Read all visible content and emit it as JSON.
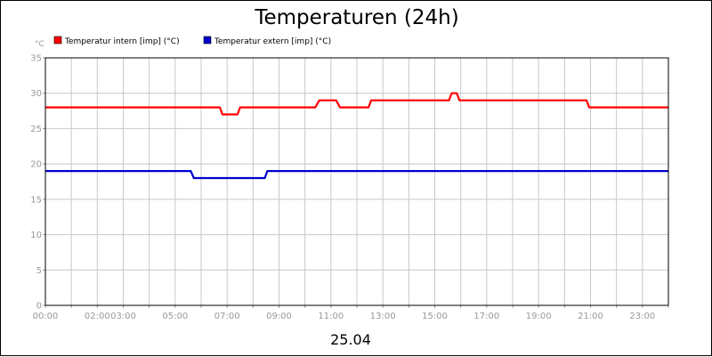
{
  "chart_data": {
    "type": "line",
    "title": "Temperaturen (24h)",
    "ylabel": "°C",
    "xlabel": "25.04",
    "ylim": [
      0,
      35
    ],
    "xlim": [
      0,
      24
    ],
    "grid": true,
    "legend_position": "top-left",
    "y_ticks": [
      0,
      5,
      10,
      15,
      20,
      25,
      30,
      35
    ],
    "x_ticks": [
      {
        "hour": 0,
        "label": "00:00"
      },
      {
        "hour": 2,
        "label": "02:00"
      },
      {
        "hour": 3,
        "label": "03:00"
      },
      {
        "hour": 5,
        "label": "05:00"
      },
      {
        "hour": 7,
        "label": "07:00"
      },
      {
        "hour": 9,
        "label": "09:00"
      },
      {
        "hour": 11,
        "label": "11:00"
      },
      {
        "hour": 13,
        "label": "13:00"
      },
      {
        "hour": 15,
        "label": "15:00"
      },
      {
        "hour": 17,
        "label": "17:00"
      },
      {
        "hour": 19,
        "label": "19:00"
      },
      {
        "hour": 21,
        "label": "21:00"
      },
      {
        "hour": 23,
        "label": "23:00"
      }
    ],
    "series": [
      {
        "name": "Temperatur intern [imp] (°C)",
        "color": "#ff0000",
        "points": [
          [
            0,
            28
          ],
          [
            6.72,
            28
          ],
          [
            6.82,
            27
          ],
          [
            7.4,
            27
          ],
          [
            7.5,
            28
          ],
          [
            10.4,
            28
          ],
          [
            10.55,
            29
          ],
          [
            11.2,
            29
          ],
          [
            11.35,
            28
          ],
          [
            12.45,
            28
          ],
          [
            12.55,
            29
          ],
          [
            15.55,
            29
          ],
          [
            15.65,
            30
          ],
          [
            15.85,
            30
          ],
          [
            15.95,
            29
          ],
          [
            20.85,
            29
          ],
          [
            20.95,
            28
          ],
          [
            24,
            28
          ]
        ]
      },
      {
        "name": "Temperatur extern [imp] (°C)",
        "color": "#0000cc",
        "points": [
          [
            0,
            19
          ],
          [
            5.6,
            19
          ],
          [
            5.72,
            18
          ],
          [
            8.45,
            18
          ],
          [
            8.55,
            19
          ],
          [
            24,
            19
          ]
        ]
      }
    ]
  }
}
